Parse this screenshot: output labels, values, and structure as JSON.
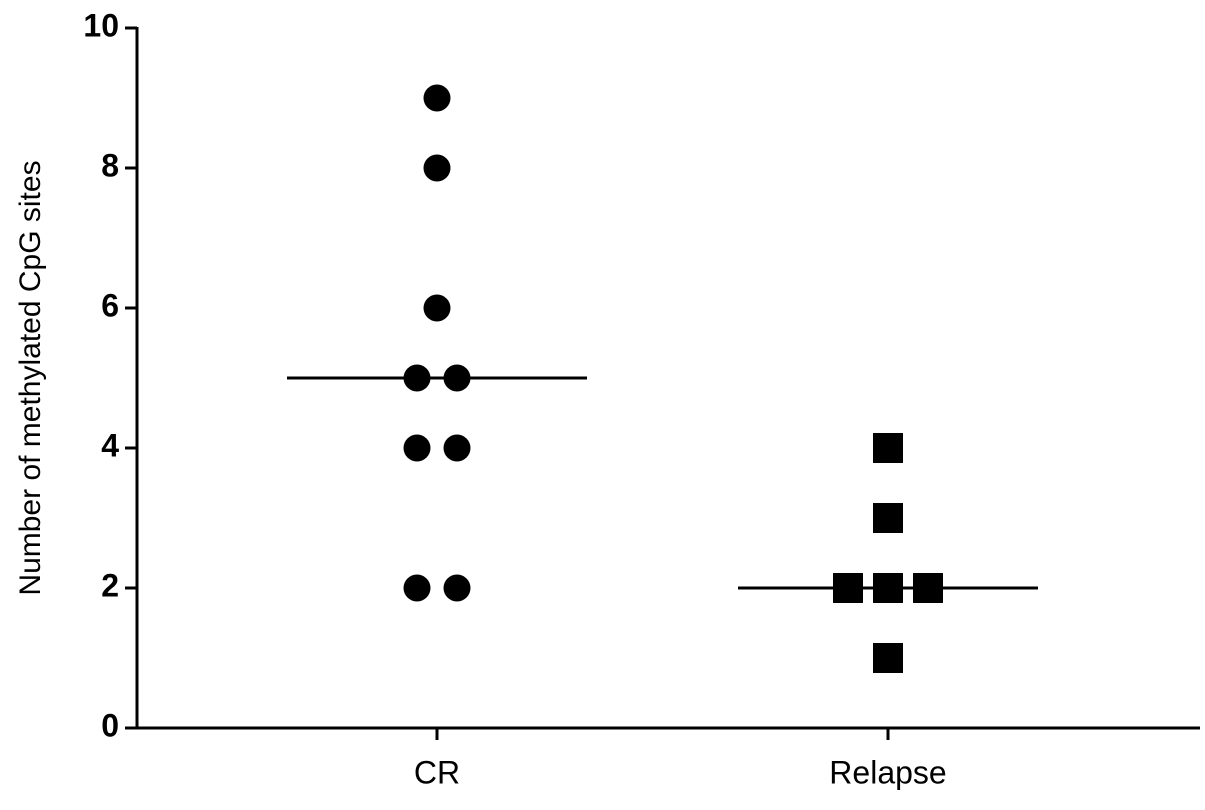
{
  "chart_data": {
    "type": "dot",
    "y_label": "Number of methylated CpG sites",
    "categories": [
      "CR",
      "Relapse"
    ],
    "values": [
      [
        9,
        8,
        6,
        5,
        5,
        4,
        4,
        2,
        2
      ],
      [
        4,
        3,
        2,
        2,
        2,
        1
      ]
    ],
    "markers": [
      "circle",
      "square"
    ],
    "medians": [
      5,
      2
    ],
    "color": "#000000",
    "ylim": [
      0,
      10
    ],
    "yticks": [
      0,
      2,
      4,
      6,
      8,
      10
    ]
  }
}
